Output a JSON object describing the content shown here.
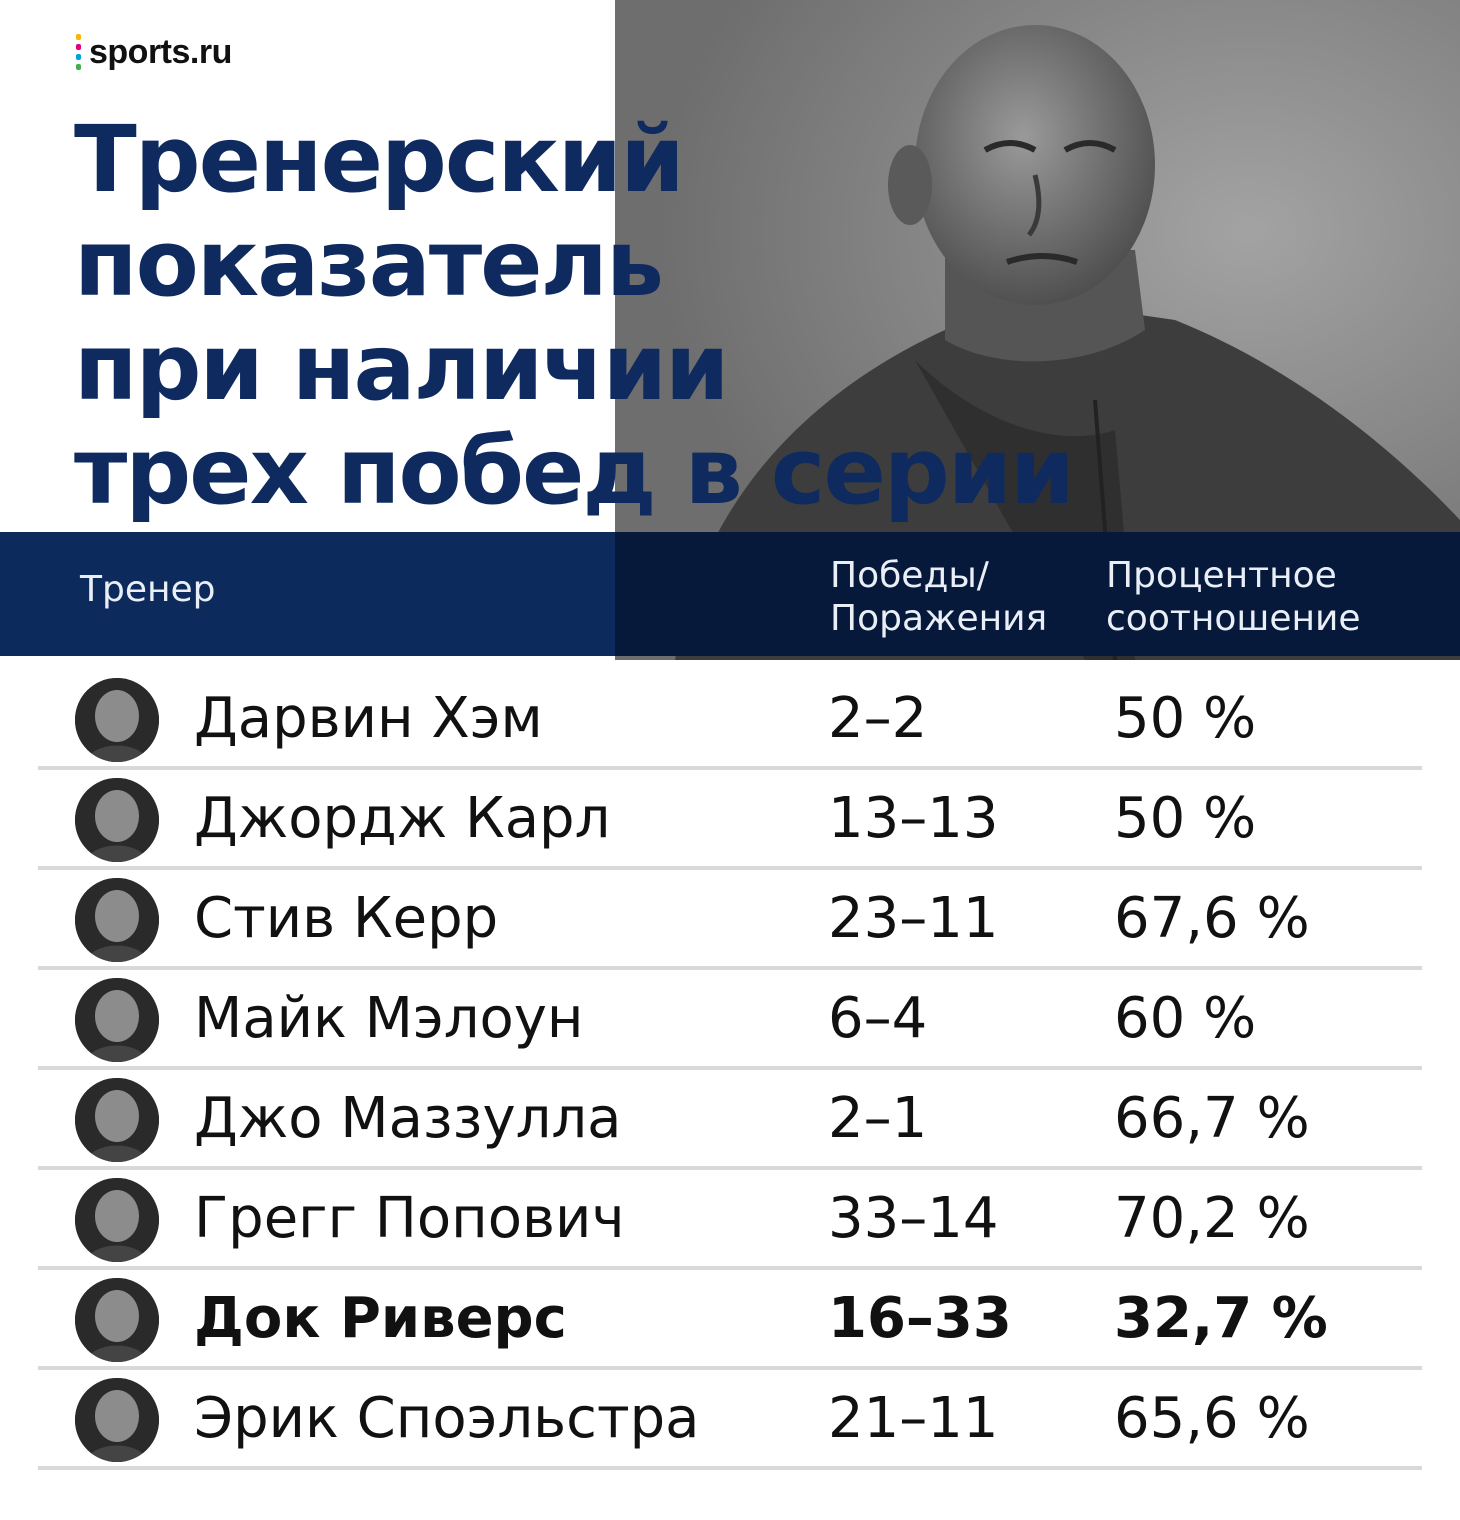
{
  "brand": {
    "logo_text": "sports.ru",
    "dot_colors": [
      "#f5b700",
      "#e4007c",
      "#00a0e3",
      "#3fb04a",
      "#7b3fa0"
    ]
  },
  "title_lines": [
    "Тренерский",
    "показатель",
    "при наличии",
    "трех побед в серии"
  ],
  "colors": {
    "title": "#0e2a5f",
    "header_bg": "#0c2a5c",
    "divider": "#d9d9d9"
  },
  "table": {
    "headers": {
      "coach": "Тренер",
      "wl_line1": "Победы/",
      "wl_line2": "Поражения",
      "pct_line1": "Процентное",
      "pct_line2": "соотношение"
    },
    "rows": [
      {
        "name": "Дарвин Хэм",
        "wl": "2–2",
        "pct": "50 %",
        "highlight": false
      },
      {
        "name": "Джордж Карл",
        "wl": "13–13",
        "pct": "50 %",
        "highlight": false
      },
      {
        "name": "Стив Керр",
        "wl": "23–11",
        "pct": "67,6 %",
        "highlight": false
      },
      {
        "name": "Майк Мэлоун",
        "wl": "6–4",
        "pct": "60 %",
        "highlight": false
      },
      {
        "name": "Джо Маззулла",
        "wl": "2–1",
        "pct": "66,7 %",
        "highlight": false
      },
      {
        "name": "Грегг Попович",
        "wl": "33–14",
        "pct": "70,2 %",
        "highlight": false
      },
      {
        "name": "Док Риверс",
        "wl": "16–33",
        "pct": "32,7 %",
        "highlight": true
      },
      {
        "name": "Эрик Споэльстра",
        "wl": "21–11",
        "pct": "65,6 %",
        "highlight": false
      }
    ]
  }
}
